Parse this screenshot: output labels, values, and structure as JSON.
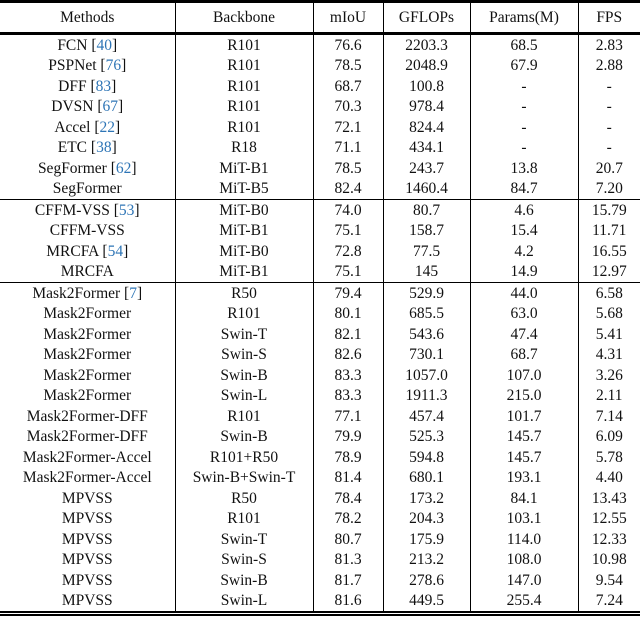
{
  "page": {
    "background": "#ffffff",
    "text_color": "#111111",
    "rule_color": "#000000"
  },
  "table": {
    "headers": [
      "Methods",
      "Backbone",
      "mIoU",
      "GFLOPs",
      "Params(M)",
      "FPS"
    ],
    "citation_color": "#2e75b6",
    "sections": [
      {
        "rows": [
          {
            "method": "FCN",
            "cite": "40",
            "backbone": "R101",
            "miou": "76.6",
            "gflops": "2203.3",
            "params": "68.5",
            "fps": "2.83"
          },
          {
            "method": "PSPNet",
            "cite": "76",
            "backbone": "R101",
            "miou": "78.5",
            "gflops": "2048.9",
            "params": "67.9",
            "fps": "2.88"
          },
          {
            "method": "DFF",
            "cite": "83",
            "backbone": "R101",
            "miou": "68.7",
            "gflops": "100.8",
            "params": "-",
            "fps": "-"
          },
          {
            "method": "DVSN",
            "cite": "67",
            "backbone": "R101",
            "miou": "70.3",
            "gflops": "978.4",
            "params": "-",
            "fps": "-"
          },
          {
            "method": "Accel",
            "cite": "22",
            "backbone": "R101",
            "miou": "72.1",
            "gflops": "824.4",
            "params": "-",
            "fps": "-"
          },
          {
            "method": "ETC",
            "cite": "38",
            "backbone": "R18",
            "miou": "71.1",
            "gflops": "434.1",
            "params": "-",
            "fps": "-"
          },
          {
            "method": "SegFormer",
            "cite": "62",
            "backbone": "MiT-B1",
            "miou": "78.5",
            "gflops": "243.7",
            "params": "13.8",
            "fps": "20.7"
          },
          {
            "method": "SegFormer",
            "cite": "",
            "backbone": "MiT-B5",
            "miou": "82.4",
            "gflops": "1460.4",
            "params": "84.7",
            "fps": "7.20"
          }
        ]
      },
      {
        "rows": [
          {
            "method": "CFFM-VSS",
            "cite": "53",
            "backbone": "MiT-B0",
            "miou": "74.0",
            "gflops": "80.7",
            "params": "4.6",
            "fps": "15.79"
          },
          {
            "method": "CFFM-VSS",
            "cite": "",
            "backbone": "MiT-B1",
            "miou": "75.1",
            "gflops": "158.7",
            "params": "15.4",
            "fps": "11.71"
          },
          {
            "method": "MRCFA",
            "cite": "54",
            "backbone": "MiT-B0",
            "miou": "72.8",
            "gflops": "77.5",
            "params": "4.2",
            "fps": "16.55"
          },
          {
            "method": "MRCFA",
            "cite": "",
            "backbone": "MiT-B1",
            "miou": "75.1",
            "gflops": "145",
            "params": "14.9",
            "fps": "12.97"
          }
        ]
      },
      {
        "rows": [
          {
            "method": "Mask2Former",
            "cite": "7",
            "backbone": "R50",
            "miou": "79.4",
            "gflops": "529.9",
            "params": "44.0",
            "fps": "6.58"
          },
          {
            "method": "Mask2Former",
            "cite": "",
            "backbone": "R101",
            "miou": "80.1",
            "gflops": "685.5",
            "params": "63.0",
            "fps": "5.68"
          },
          {
            "method": "Mask2Former",
            "cite": "",
            "backbone": "Swin-T",
            "miou": "82.1",
            "gflops": "543.6",
            "params": "47.4",
            "fps": "5.41"
          },
          {
            "method": "Mask2Former",
            "cite": "",
            "backbone": "Swin-S",
            "miou": "82.6",
            "gflops": "730.1",
            "params": "68.7",
            "fps": "4.31"
          },
          {
            "method": "Mask2Former",
            "cite": "",
            "backbone": "Swin-B",
            "miou": "83.3",
            "gflops": "1057.0",
            "params": "107.0",
            "fps": "3.26"
          },
          {
            "method": "Mask2Former",
            "cite": "",
            "backbone": "Swin-L",
            "miou": "83.3",
            "gflops": "1911.3",
            "params": "215.0",
            "fps": "2.11"
          },
          {
            "method": "Mask2Former-DFF",
            "cite": "",
            "backbone": "R101",
            "miou": "77.1",
            "gflops": "457.4",
            "params": "101.7",
            "fps": "7.14"
          },
          {
            "method": "Mask2Former-DFF",
            "cite": "",
            "backbone": "Swin-B",
            "miou": "79.9",
            "gflops": "525.3",
            "params": "145.7",
            "fps": "6.09"
          },
          {
            "method": "Mask2Former-Accel",
            "cite": "",
            "backbone": "R101+R50",
            "miou": "78.9",
            "gflops": "594.8",
            "params": "145.7",
            "fps": "5.78"
          },
          {
            "method": "Mask2Former-Accel",
            "cite": "",
            "backbone": "Swin-B+Swin-T",
            "miou": "81.4",
            "gflops": "680.1",
            "params": "193.1",
            "fps": "4.40"
          },
          {
            "method": "MPVSS",
            "cite": "",
            "backbone": "R50",
            "miou": "78.4",
            "gflops": "173.2",
            "params": "84.1",
            "fps": "13.43"
          },
          {
            "method": "MPVSS",
            "cite": "",
            "backbone": "R101",
            "miou": "78.2",
            "gflops": "204.3",
            "params": "103.1",
            "fps": "12.55"
          },
          {
            "method": "MPVSS",
            "cite": "",
            "backbone": "Swin-T",
            "miou": "80.7",
            "gflops": "175.9",
            "params": "114.0",
            "fps": "12.33"
          },
          {
            "method": "MPVSS",
            "cite": "",
            "backbone": "Swin-S",
            "miou": "81.3",
            "gflops": "213.2",
            "params": "108.0",
            "fps": "10.98"
          },
          {
            "method": "MPVSS",
            "cite": "",
            "backbone": "Swin-B",
            "miou": "81.7",
            "gflops": "278.6",
            "params": "147.0",
            "fps": "9.54"
          },
          {
            "method": "MPVSS",
            "cite": "",
            "backbone": "Swin-L",
            "miou": "81.6",
            "gflops": "449.5",
            "params": "255.4",
            "fps": "7.24"
          }
        ]
      }
    ]
  }
}
